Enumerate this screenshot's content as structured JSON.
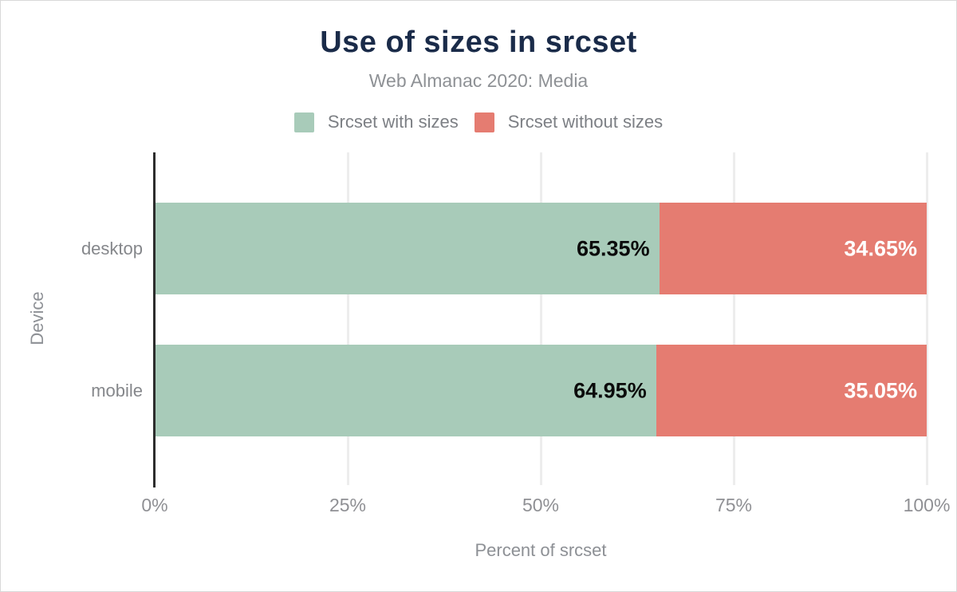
{
  "figure": {
    "title": "Use of sizes in srcset",
    "subtitle": "Web Almanac 2020: Media"
  },
  "colors": {
    "title_text": "#1a2b49",
    "axis_line": "#2d2d2d",
    "gridline": "#ededed",
    "muted_text": "#8d9095",
    "series_green": "#a8cbb9",
    "series_red": "#e57c71"
  },
  "chart_data": {
    "type": "bar",
    "orientation": "horizontal",
    "stacked": true,
    "title": "Use of sizes in srcset",
    "subtitle": "Web Almanac 2020: Media",
    "categories": [
      "desktop",
      "mobile"
    ],
    "series": [
      {
        "name": "Srcset with sizes",
        "color": "#a8cbb9",
        "label_color": "#0b0b0b",
        "values": [
          65.35,
          64.95
        ]
      },
      {
        "name": "Srcset without sizes",
        "color": "#e57c71",
        "label_color": "#ffffff",
        "values": [
          34.65,
          35.05
        ]
      }
    ],
    "value_labels": [
      [
        "65.35%",
        "64.95%"
      ],
      [
        "34.65%",
        "35.05%"
      ]
    ],
    "xlabel": "Percent of srcset",
    "ylabel": "Device",
    "xlim": [
      0,
      100
    ],
    "x_ticks": [
      {
        "value": 0,
        "label": "0%"
      },
      {
        "value": 25,
        "label": "25%"
      },
      {
        "value": 50,
        "label": "50%"
      },
      {
        "value": 75,
        "label": "75%"
      },
      {
        "value": 100,
        "label": "100%"
      }
    ],
    "grid": "vertical",
    "legend_position": "top"
  }
}
